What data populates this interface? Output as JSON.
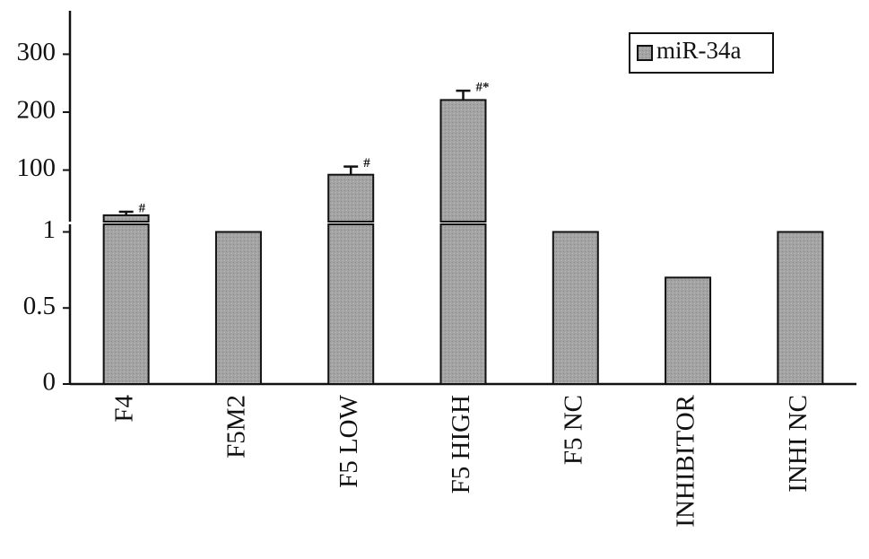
{
  "chart_data": {
    "type": "bar",
    "categories": [
      "F4",
      "F5M2",
      "F5 LOW",
      "F5 HIGH",
      "F5 NC",
      "INHIBITOR",
      "INHI NC"
    ],
    "series": [
      {
        "name": "miR-34a",
        "color": "#a3a3a3",
        "values": [
          22,
          1,
          92,
          221,
          1,
          0.7,
          1
        ],
        "errors": [
          6,
          null,
          14,
          16,
          null,
          null,
          null
        ],
        "annotations": [
          "#",
          null,
          "#",
          "#*",
          null,
          null,
          null
        ]
      }
    ],
    "ylim": [
      0,
      1.05
    ],
    "yticks": [
      0,
      0.5,
      1
    ],
    "ylim_upper": [
      11,
      375
    ],
    "yticks_upper": [
      100,
      200,
      300
    ],
    "axis_break": true,
    "legend": "upper right",
    "grid": false
  }
}
